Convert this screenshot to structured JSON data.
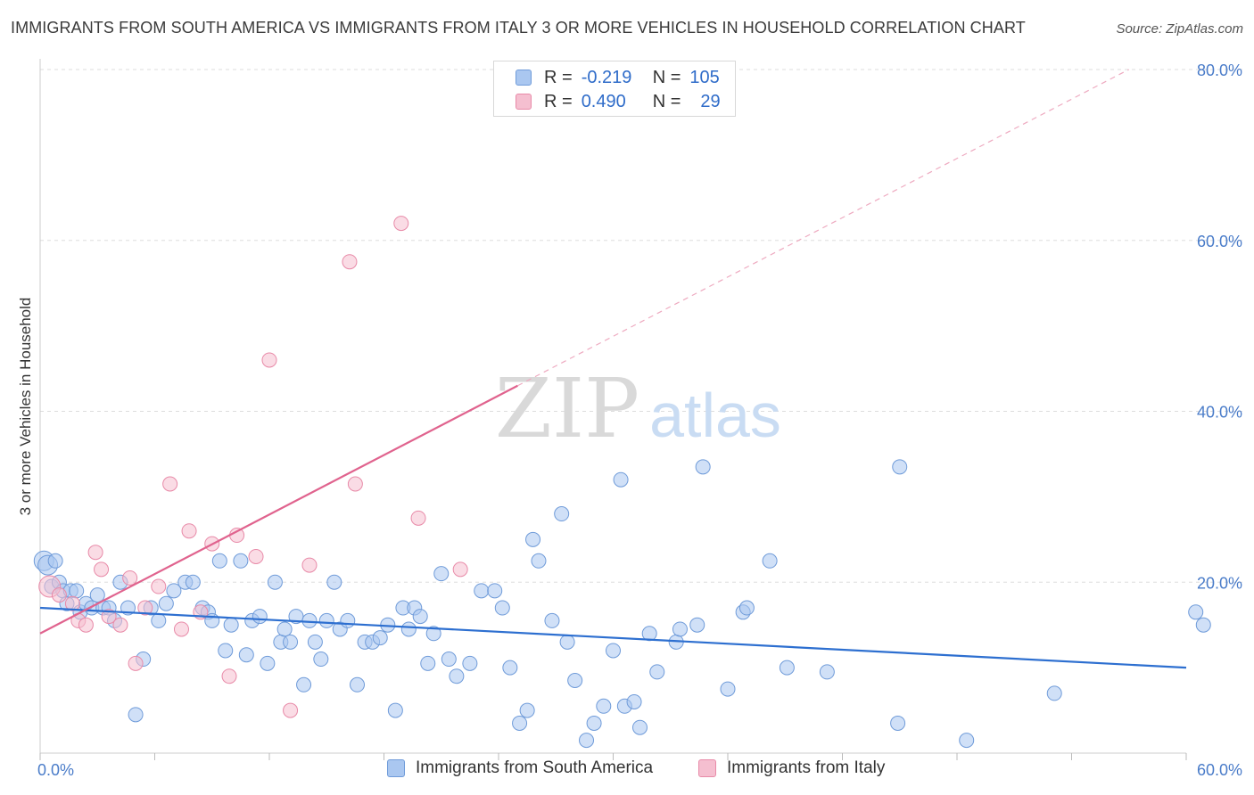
{
  "title": "IMMIGRANTS FROM SOUTH AMERICA VS IMMIGRANTS FROM ITALY 3 OR MORE VEHICLES IN HOUSEHOLD CORRELATION CHART",
  "source": "Source: ZipAtlas.com",
  "watermark": {
    "zip": "ZIP",
    "atlas": "atlas"
  },
  "legend": {
    "r_label": "R =",
    "n_label": "N =",
    "rows": [
      {
        "r": "-0.219",
        "n": "105"
      },
      {
        "r": "0.490",
        "n": "29"
      }
    ]
  },
  "bottom_legend": [
    "Immigrants from South America",
    "Immigrants from Italy"
  ],
  "colors": {
    "blue_fill": "#aac7f0",
    "blue_stroke": "#6f9bd9",
    "blue_line": "#2d6fd0",
    "pink_fill": "#f5bfd0",
    "pink_stroke": "#e88aa8",
    "pink_line": "#e0638e",
    "axis_text": "#4a7cc9",
    "grid": "#dddddd"
  },
  "chart_data": {
    "type": "scatter",
    "ylabel": "3 or more Vehicles in Household",
    "xlabel": "",
    "xlim": [
      0,
      60
    ],
    "ylim": [
      0,
      80
    ],
    "x_tick_labels": [
      "0.0%",
      "60.0%"
    ],
    "y_ticks": [
      20,
      40,
      60,
      80
    ],
    "y_tick_labels": [
      "20.0%",
      "40.0%",
      "60.0%",
      "80.0%"
    ],
    "grid": "horizontal-dashed",
    "series": [
      {
        "name": "Immigrants from South America",
        "r": -0.219,
        "n": 105,
        "trend": {
          "x0": 0,
          "y0": 17.0,
          "x1": 60,
          "y1": 10.0
        },
        "points": [
          [
            0.2,
            22.5
          ],
          [
            0.4,
            22.0
          ],
          [
            0.6,
            19.5
          ],
          [
            0.8,
            22.5
          ],
          [
            1.0,
            20.0
          ],
          [
            1.2,
            19.0
          ],
          [
            1.4,
            17.5
          ],
          [
            1.6,
            19.0
          ],
          [
            1.9,
            19.0
          ],
          [
            2.1,
            16.5
          ],
          [
            2.4,
            17.5
          ],
          [
            2.7,
            17.0
          ],
          [
            3.0,
            18.5
          ],
          [
            3.3,
            17.0
          ],
          [
            3.6,
            17.0
          ],
          [
            3.9,
            15.5
          ],
          [
            4.2,
            20.0
          ],
          [
            4.6,
            17.0
          ],
          [
            5.0,
            4.5
          ],
          [
            5.4,
            11.0
          ],
          [
            5.8,
            17.0
          ],
          [
            6.2,
            15.5
          ],
          [
            6.6,
            17.5
          ],
          [
            7.0,
            19.0
          ],
          [
            7.6,
            20.0
          ],
          [
            8.0,
            20.0
          ],
          [
            8.5,
            17.0
          ],
          [
            8.8,
            16.5
          ],
          [
            9.0,
            15.5
          ],
          [
            9.4,
            22.5
          ],
          [
            9.7,
            12.0
          ],
          [
            10.0,
            15.0
          ],
          [
            10.5,
            22.5
          ],
          [
            10.8,
            11.5
          ],
          [
            11.1,
            15.5
          ],
          [
            11.5,
            16.0
          ],
          [
            11.9,
            10.5
          ],
          [
            12.3,
            20.0
          ],
          [
            12.6,
            13.0
          ],
          [
            12.8,
            14.5
          ],
          [
            13.1,
            13.0
          ],
          [
            13.4,
            16.0
          ],
          [
            13.8,
            8.0
          ],
          [
            14.1,
            15.5
          ],
          [
            14.4,
            13.0
          ],
          [
            14.7,
            11.0
          ],
          [
            15.0,
            15.5
          ],
          [
            15.4,
            20.0
          ],
          [
            15.7,
            14.5
          ],
          [
            16.1,
            15.5
          ],
          [
            16.6,
            8.0
          ],
          [
            17.0,
            13.0
          ],
          [
            17.4,
            13.0
          ],
          [
            17.8,
            13.5
          ],
          [
            18.2,
            15.0
          ],
          [
            18.6,
            5.0
          ],
          [
            19.0,
            17.0
          ],
          [
            19.3,
            14.5
          ],
          [
            19.6,
            17.0
          ],
          [
            19.9,
            16.0
          ],
          [
            20.3,
            10.5
          ],
          [
            20.6,
            14.0
          ],
          [
            21.0,
            21.0
          ],
          [
            21.4,
            11.0
          ],
          [
            21.8,
            9.0
          ],
          [
            22.5,
            10.5
          ],
          [
            23.1,
            19.0
          ],
          [
            23.8,
            19.0
          ],
          [
            24.2,
            17.0
          ],
          [
            24.6,
            10.0
          ],
          [
            25.1,
            3.5
          ],
          [
            25.5,
            5.0
          ],
          [
            25.8,
            25.0
          ],
          [
            26.1,
            22.5
          ],
          [
            26.8,
            15.5
          ],
          [
            27.3,
            28.0
          ],
          [
            27.6,
            13.0
          ],
          [
            28.0,
            8.5
          ],
          [
            28.6,
            1.5
          ],
          [
            29.0,
            3.5
          ],
          [
            29.5,
            5.5
          ],
          [
            30.0,
            12.0
          ],
          [
            30.4,
            32.0
          ],
          [
            30.6,
            5.5
          ],
          [
            31.1,
            6.0
          ],
          [
            31.4,
            3.0
          ],
          [
            31.9,
            14.0
          ],
          [
            32.3,
            9.5
          ],
          [
            33.3,
            13.0
          ],
          [
            33.5,
            14.5
          ],
          [
            34.4,
            15.0
          ],
          [
            34.7,
            33.5
          ],
          [
            36.0,
            7.5
          ],
          [
            36.8,
            16.5
          ],
          [
            37.0,
            17.0
          ],
          [
            38.2,
            22.5
          ],
          [
            39.1,
            10.0
          ],
          [
            41.2,
            9.5
          ],
          [
            44.9,
            3.5
          ],
          [
            45.0,
            33.5
          ],
          [
            48.5,
            1.5
          ],
          [
            53.1,
            7.0
          ],
          [
            60.5,
            16.5
          ],
          [
            60.9,
            15.0
          ]
        ]
      },
      {
        "name": "Immigrants from Italy",
        "r": 0.49,
        "n": 29,
        "trend": {
          "x0": 0,
          "y0": 14.0,
          "x1": 25,
          "y1": 43.0
        },
        "trend_extension": {
          "x0": 25,
          "y0": 43.0,
          "x1": 57,
          "y1": 80.0
        },
        "points": [
          [
            0.5,
            19.5
          ],
          [
            1.0,
            18.5
          ],
          [
            1.7,
            17.5
          ],
          [
            2.0,
            15.5
          ],
          [
            2.4,
            15.0
          ],
          [
            2.9,
            23.5
          ],
          [
            3.2,
            21.5
          ],
          [
            3.6,
            16.0
          ],
          [
            4.2,
            15.0
          ],
          [
            4.7,
            20.5
          ],
          [
            5.0,
            10.5
          ],
          [
            5.5,
            17.0
          ],
          [
            6.2,
            19.5
          ],
          [
            6.8,
            31.5
          ],
          [
            7.4,
            14.5
          ],
          [
            7.8,
            26.0
          ],
          [
            8.4,
            16.5
          ],
          [
            9.0,
            24.5
          ],
          [
            9.9,
            9.0
          ],
          [
            10.3,
            25.5
          ],
          [
            11.3,
            23.0
          ],
          [
            12.0,
            46.0
          ],
          [
            13.1,
            5.0
          ],
          [
            14.1,
            22.0
          ],
          [
            16.2,
            57.5
          ],
          [
            16.5,
            31.5
          ],
          [
            18.9,
            62.0
          ],
          [
            19.8,
            27.5
          ],
          [
            22.0,
            21.5
          ]
        ]
      }
    ]
  }
}
